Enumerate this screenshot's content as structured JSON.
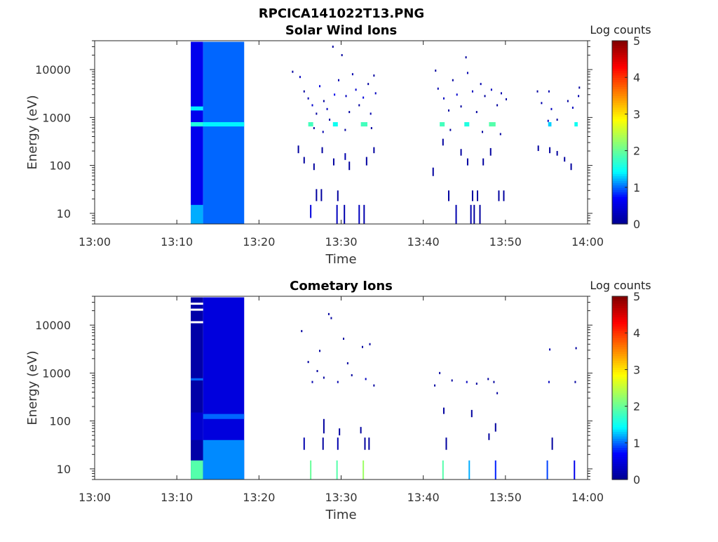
{
  "figure_title": "RPCICA141022T13.PNG",
  "colormap": [
    "#00008f",
    "#0000ff",
    "#00ffff",
    "#80ff80",
    "#ffff00",
    "#ff8000",
    "#ff0000",
    "#800000"
  ],
  "chart_data": [
    {
      "type": "heatmap",
      "title": "Solar Wind Ions",
      "xlabel": "Time",
      "ylabel": "Energy (eV)",
      "x_ticks": [
        "13:00",
        "13:10",
        "13:20",
        "13:30",
        "13:40",
        "13:50",
        "14:00"
      ],
      "y_ticks": [
        "10",
        "100",
        "1000",
        "10000"
      ],
      "ylim": [
        6,
        40000
      ],
      "y_scale": "log",
      "colorbar": {
        "label": "Log counts",
        "range": [
          0,
          5
        ],
        "ticks": [
          "0",
          "1",
          "2",
          "3",
          "4",
          "5"
        ]
      },
      "cells": [
        {
          "t0": 11.7,
          "t1": 13.2,
          "e0": 6,
          "e1": 38000,
          "v": 0.6
        },
        {
          "t0": 11.7,
          "t1": 13.2,
          "e0": 6,
          "e1": 15,
          "v": 1.2
        },
        {
          "t0": 11.7,
          "t1": 13.2,
          "e0": 650,
          "e1": 800,
          "v": 1.6
        },
        {
          "t0": 11.7,
          "t1": 13.2,
          "e0": 1400,
          "e1": 1700,
          "v": 1.4
        },
        {
          "t0": 13.2,
          "t1": 18.2,
          "e0": 6,
          "e1": 38000,
          "v": 1.0
        },
        {
          "t0": 13.2,
          "t1": 18.2,
          "e0": 650,
          "e1": 800,
          "v": 1.4
        },
        {
          "t0": 26.0,
          "t1": 26.6,
          "e0": 650,
          "e1": 800,
          "v": 1.8
        },
        {
          "t0": 29.0,
          "t1": 29.6,
          "e0": 650,
          "e1": 800,
          "v": 1.5
        },
        {
          "t0": 32.4,
          "t1": 33.2,
          "e0": 650,
          "e1": 800,
          "v": 1.8
        },
        {
          "t0": 42.0,
          "t1": 42.6,
          "e0": 650,
          "e1": 800,
          "v": 1.8
        },
        {
          "t0": 45.0,
          "t1": 45.6,
          "e0": 650,
          "e1": 800,
          "v": 1.6
        },
        {
          "t0": 48.0,
          "t1": 48.8,
          "e0": 650,
          "e1": 800,
          "v": 1.9
        },
        {
          "t0": 55.2,
          "t1": 55.6,
          "e0": 650,
          "e1": 800,
          "v": 1.3
        },
        {
          "t0": 58.4,
          "t1": 58.8,
          "e0": 650,
          "e1": 800,
          "v": 1.5
        }
      ],
      "dots": [
        {
          "t": 24.1,
          "e": 9000,
          "v": 0.1
        },
        {
          "t": 25.0,
          "e": 7000,
          "v": 0.3
        },
        {
          "t": 25.5,
          "e": 3500,
          "v": 0.1
        },
        {
          "t": 26.0,
          "e": 2500,
          "v": 0.2
        },
        {
          "t": 26.5,
          "e": 1800,
          "v": 0.4
        },
        {
          "t": 27.0,
          "e": 1200,
          "v": 0.1
        },
        {
          "t": 27.4,
          "e": 4500,
          "v": 0.5
        },
        {
          "t": 27.9,
          "e": 2200,
          "v": 0.1
        },
        {
          "t": 28.3,
          "e": 1500,
          "v": 0.3
        },
        {
          "t": 28.6,
          "e": 900,
          "v": 0.1
        },
        {
          "t": 29.0,
          "e": 30000,
          "v": 0.1
        },
        {
          "t": 29.2,
          "e": 3000,
          "v": 0.6
        },
        {
          "t": 29.7,
          "e": 6000,
          "v": 0.2
        },
        {
          "t": 30.1,
          "e": 20000,
          "v": 0.1
        },
        {
          "t": 30.6,
          "e": 2800,
          "v": 0.3
        },
        {
          "t": 31.0,
          "e": 1300,
          "v": 0.1
        },
        {
          "t": 31.4,
          "e": 8000,
          "v": 0.2
        },
        {
          "t": 31.8,
          "e": 3800,
          "v": 0.4
        },
        {
          "t": 32.2,
          "e": 1800,
          "v": 0.1
        },
        {
          "t": 32.7,
          "e": 2600,
          "v": 0.5
        },
        {
          "t": 33.3,
          "e": 5000,
          "v": 0.1
        },
        {
          "t": 33.6,
          "e": 1200,
          "v": 0.2
        },
        {
          "t": 34.0,
          "e": 7500,
          "v": 0.1
        },
        {
          "t": 34.2,
          "e": 3200,
          "v": 0.3
        },
        {
          "t": 26.7,
          "e": 600,
          "v": 0.1
        },
        {
          "t": 27.8,
          "e": 500,
          "v": 0.2
        },
        {
          "t": 30.5,
          "e": 550,
          "v": 0.1
        },
        {
          "t": 33.7,
          "e": 600,
          "v": 0.1
        },
        {
          "t": 41.5,
          "e": 9500,
          "v": 0.1
        },
        {
          "t": 41.8,
          "e": 4000,
          "v": 0.2
        },
        {
          "t": 42.5,
          "e": 2500,
          "v": 0.3
        },
        {
          "t": 43.1,
          "e": 1400,
          "v": 0.1
        },
        {
          "t": 43.6,
          "e": 6000,
          "v": 0.1
        },
        {
          "t": 44.1,
          "e": 3000,
          "v": 0.4
        },
        {
          "t": 44.6,
          "e": 1700,
          "v": 0.1
        },
        {
          "t": 45.2,
          "e": 18000,
          "v": 0.1
        },
        {
          "t": 45.4,
          "e": 8500,
          "v": 0.2
        },
        {
          "t": 46.0,
          "e": 3500,
          "v": 0.3
        },
        {
          "t": 46.5,
          "e": 1300,
          "v": 0.1
        },
        {
          "t": 47.0,
          "e": 5000,
          "v": 0.2
        },
        {
          "t": 47.5,
          "e": 2800,
          "v": 0.1
        },
        {
          "t": 48.3,
          "e": 3800,
          "v": 0.3
        },
        {
          "t": 49.0,
          "e": 1800,
          "v": 0.1
        },
        {
          "t": 49.5,
          "e": 3200,
          "v": 0.2
        },
        {
          "t": 50.1,
          "e": 2400,
          "v": 0.1
        },
        {
          "t": 43.3,
          "e": 550,
          "v": 0.1
        },
        {
          "t": 47.2,
          "e": 500,
          "v": 0.1
        },
        {
          "t": 49.4,
          "e": 450,
          "v": 0.1
        },
        {
          "t": 53.9,
          "e": 3500,
          "v": 0.1
        },
        {
          "t": 54.4,
          "e": 2000,
          "v": 0.2
        },
        {
          "t": 55.3,
          "e": 3500,
          "v": 0.2
        },
        {
          "t": 55.6,
          "e": 1500,
          "v": 0.3
        },
        {
          "t": 56.3,
          "e": 900,
          "v": 0.1
        },
        {
          "t": 57.6,
          "e": 2200,
          "v": 0.1
        },
        {
          "t": 58.2,
          "e": 1600,
          "v": 0.3
        },
        {
          "t": 58.9,
          "e": 2800,
          "v": 0.2
        },
        {
          "t": 59.0,
          "e": 4200,
          "v": 0.1
        },
        {
          "t": 55.2,
          "e": 850,
          "v": 0.3
        }
      ],
      "streaks": [
        {
          "t": 24.8,
          "e0": 180,
          "e1": 260,
          "v": 0.1
        },
        {
          "t": 25.5,
          "e0": 110,
          "e1": 150,
          "v": 0.1
        },
        {
          "t": 26.3,
          "e0": 8,
          "e1": 15,
          "v": 0.5
        },
        {
          "t": 26.7,
          "e0": 80,
          "e1": 110,
          "v": 0.1
        },
        {
          "t": 27.0,
          "e0": 18,
          "e1": 32,
          "v": 0.1
        },
        {
          "t": 27.6,
          "e0": 18,
          "e1": 32,
          "v": 0.1
        },
        {
          "t": 27.7,
          "e0": 180,
          "e1": 240,
          "v": 0.1
        },
        {
          "t": 29.1,
          "e0": 100,
          "e1": 140,
          "v": 0.1
        },
        {
          "t": 29.5,
          "e0": 6,
          "e1": 15,
          "v": 0.3
        },
        {
          "t": 29.6,
          "e0": 18,
          "e1": 30,
          "v": 0.1
        },
        {
          "t": 30.4,
          "e0": 6,
          "e1": 15,
          "v": 0.2
        },
        {
          "t": 30.5,
          "e0": 130,
          "e1": 180,
          "v": 0.2
        },
        {
          "t": 31.0,
          "e0": 80,
          "e1": 120,
          "v": 0.1
        },
        {
          "t": 32.2,
          "e0": 6,
          "e1": 15,
          "v": 0.3
        },
        {
          "t": 32.8,
          "e0": 6,
          "e1": 15,
          "v": 0.2
        },
        {
          "t": 33.1,
          "e0": 100,
          "e1": 150,
          "v": 0.1
        },
        {
          "t": 34.0,
          "e0": 180,
          "e1": 240,
          "v": 0.1
        },
        {
          "t": 41.2,
          "e0": 60,
          "e1": 90,
          "v": 0.1
        },
        {
          "t": 42.4,
          "e0": 260,
          "e1": 360,
          "v": 0.1
        },
        {
          "t": 43.1,
          "e0": 18,
          "e1": 30,
          "v": 0.1
        },
        {
          "t": 44.0,
          "e0": 6,
          "e1": 15,
          "v": 0.2
        },
        {
          "t": 44.6,
          "e0": 160,
          "e1": 220,
          "v": 0.1
        },
        {
          "t": 45.4,
          "e0": 100,
          "e1": 140,
          "v": 0.1
        },
        {
          "t": 45.8,
          "e0": 6,
          "e1": 15,
          "v": 0.2
        },
        {
          "t": 46.2,
          "e0": 6,
          "e1": 15,
          "v": 0.1
        },
        {
          "t": 46.0,
          "e0": 18,
          "e1": 30,
          "v": 0.1
        },
        {
          "t": 46.6,
          "e0": 18,
          "e1": 30,
          "v": 0.1
        },
        {
          "t": 46.9,
          "e0": 6,
          "e1": 15,
          "v": 0.1
        },
        {
          "t": 47.3,
          "e0": 100,
          "e1": 140,
          "v": 0.1
        },
        {
          "t": 48.2,
          "e0": 160,
          "e1": 230,
          "v": 0.1
        },
        {
          "t": 49.2,
          "e0": 18,
          "e1": 30,
          "v": 0.1
        },
        {
          "t": 49.8,
          "e0": 18,
          "e1": 30,
          "v": 0.1
        },
        {
          "t": 54.0,
          "e0": 200,
          "e1": 260,
          "v": 0.1
        },
        {
          "t": 55.4,
          "e0": 180,
          "e1": 240,
          "v": 0.1
        },
        {
          "t": 56.3,
          "e0": 160,
          "e1": 200,
          "v": 0.1
        },
        {
          "t": 57.2,
          "e0": 120,
          "e1": 150,
          "v": 0.1
        },
        {
          "t": 58.0,
          "e0": 80,
          "e1": 110,
          "v": 0.1
        }
      ]
    },
    {
      "type": "heatmap",
      "title": "Cometary Ions",
      "xlabel": "Time",
      "ylabel": "Energy (eV)",
      "x_ticks": [
        "13:00",
        "13:10",
        "13:20",
        "13:30",
        "13:40",
        "13:50",
        "14:00"
      ],
      "y_ticks": [
        "10",
        "100",
        "1000",
        "10000"
      ],
      "ylim": [
        6,
        40000
      ],
      "y_scale": "log",
      "colorbar": {
        "label": "Log counts",
        "range": [
          0,
          5
        ],
        "ticks": [
          "0",
          "1",
          "2",
          "3",
          "4",
          "5"
        ]
      },
      "cells": [
        {
          "t0": 11.7,
          "t1": 13.2,
          "e0": 6,
          "e1": 38000,
          "v": 0.15
        },
        {
          "t0": 11.7,
          "t1": 13.2,
          "e0": 6,
          "e1": 15,
          "v": 1.9
        },
        {
          "t0": 11.7,
          "t1": 13.2,
          "e0": 700,
          "e1": 780,
          "v": 1.0
        },
        {
          "t0": 11.7,
          "t1": 13.2,
          "e0": 40,
          "e1": 150,
          "v": 0.4
        },
        {
          "t0": 13.2,
          "t1": 18.2,
          "e0": 6,
          "e1": 38000,
          "v": 0.5
        },
        {
          "t0": 13.2,
          "t1": 18.2,
          "e0": 6,
          "e1": 40,
          "v": 1.1
        },
        {
          "t0": 13.2,
          "t1": 18.2,
          "e0": 110,
          "e1": 140,
          "v": 1.0
        }
      ],
      "gaps": [
        {
          "t0": 11.7,
          "t1": 13.2,
          "e": 28000
        },
        {
          "t0": 11.7,
          "t1": 13.2,
          "e": 21000
        },
        {
          "t0": 11.7,
          "t1": 13.2,
          "e": 11500
        }
      ],
      "dots": [
        {
          "t": 25.2,
          "e": 7500,
          "v": 0.1
        },
        {
          "t": 26.0,
          "e": 1700,
          "v": 0.1
        },
        {
          "t": 26.5,
          "e": 650,
          "v": 0.2
        },
        {
          "t": 27.1,
          "e": 1100,
          "v": 0.1
        },
        {
          "t": 27.4,
          "e": 2900,
          "v": 0.1
        },
        {
          "t": 27.9,
          "e": 800,
          "v": 0.1
        },
        {
          "t": 28.5,
          "e": 17000,
          "v": 0.1
        },
        {
          "t": 28.8,
          "e": 14000,
          "v": 0.1
        },
        {
          "t": 29.6,
          "e": 650,
          "v": 0.2
        },
        {
          "t": 30.3,
          "e": 5200,
          "v": 0.1
        },
        {
          "t": 30.8,
          "e": 1600,
          "v": 0.1
        },
        {
          "t": 31.3,
          "e": 900,
          "v": 0.1
        },
        {
          "t": 32.6,
          "e": 3500,
          "v": 0.1
        },
        {
          "t": 33.0,
          "e": 750,
          "v": 0.3
        },
        {
          "t": 33.5,
          "e": 4000,
          "v": 0.1
        },
        {
          "t": 34.0,
          "e": 550,
          "v": 0.1
        },
        {
          "t": 41.4,
          "e": 550,
          "v": 0.1
        },
        {
          "t": 42.0,
          "e": 1000,
          "v": 0.1
        },
        {
          "t": 43.5,
          "e": 700,
          "v": 0.1
        },
        {
          "t": 45.3,
          "e": 650,
          "v": 0.3
        },
        {
          "t": 46.5,
          "e": 600,
          "v": 0.1
        },
        {
          "t": 47.9,
          "e": 750,
          "v": 0.1
        },
        {
          "t": 48.6,
          "e": 650,
          "v": 0.1
        },
        {
          "t": 49.0,
          "e": 380,
          "v": 0.1
        },
        {
          "t": 55.3,
          "e": 650,
          "v": 0.3
        },
        {
          "t": 55.4,
          "e": 3100,
          "v": 0.2
        },
        {
          "t": 58.5,
          "e": 650,
          "v": 0.1
        },
        {
          "t": 58.6,
          "e": 3300,
          "v": 0.1
        }
      ],
      "streaks": [
        {
          "t": 26.3,
          "e0": 5,
          "e1": 15,
          "v": 2.0
        },
        {
          "t": 29.5,
          "e0": 5,
          "e1": 15,
          "v": 1.9
        },
        {
          "t": 32.7,
          "e0": 5,
          "e1": 15,
          "v": 2.3
        },
        {
          "t": 42.4,
          "e0": 5,
          "e1": 15,
          "v": 1.9
        },
        {
          "t": 45.6,
          "e0": 5,
          "e1": 15,
          "v": 1.2
        },
        {
          "t": 48.8,
          "e0": 5,
          "e1": 15,
          "v": 0.8
        },
        {
          "t": 55.1,
          "e0": 5,
          "e1": 15,
          "v": 0.9
        },
        {
          "t": 58.4,
          "e0": 5,
          "e1": 15,
          "v": 0.6
        },
        {
          "t": 25.5,
          "e0": 25,
          "e1": 45,
          "v": 0.2
        },
        {
          "t": 27.8,
          "e0": 25,
          "e1": 45,
          "v": 0.1
        },
        {
          "t": 27.9,
          "e0": 55,
          "e1": 110,
          "v": 0.1
        },
        {
          "t": 29.6,
          "e0": 25,
          "e1": 45,
          "v": 0.2
        },
        {
          "t": 29.8,
          "e0": 50,
          "e1": 70,
          "v": 0.1
        },
        {
          "t": 32.9,
          "e0": 25,
          "e1": 45,
          "v": 0.1
        },
        {
          "t": 33.4,
          "e0": 25,
          "e1": 45,
          "v": 0.1
        },
        {
          "t": 32.4,
          "e0": 55,
          "e1": 75,
          "v": 0.1
        },
        {
          "t": 42.8,
          "e0": 25,
          "e1": 45,
          "v": 0.1
        },
        {
          "t": 48.0,
          "e0": 40,
          "e1": 55,
          "v": 0.1
        },
        {
          "t": 48.8,
          "e0": 60,
          "e1": 90,
          "v": 0.1
        },
        {
          "t": 55.7,
          "e0": 25,
          "e1": 45,
          "v": 0.1
        },
        {
          "t": 42.5,
          "e0": 140,
          "e1": 190,
          "v": 0.1
        },
        {
          "t": 45.9,
          "e0": 120,
          "e1": 170,
          "v": 0.1
        }
      ]
    }
  ]
}
